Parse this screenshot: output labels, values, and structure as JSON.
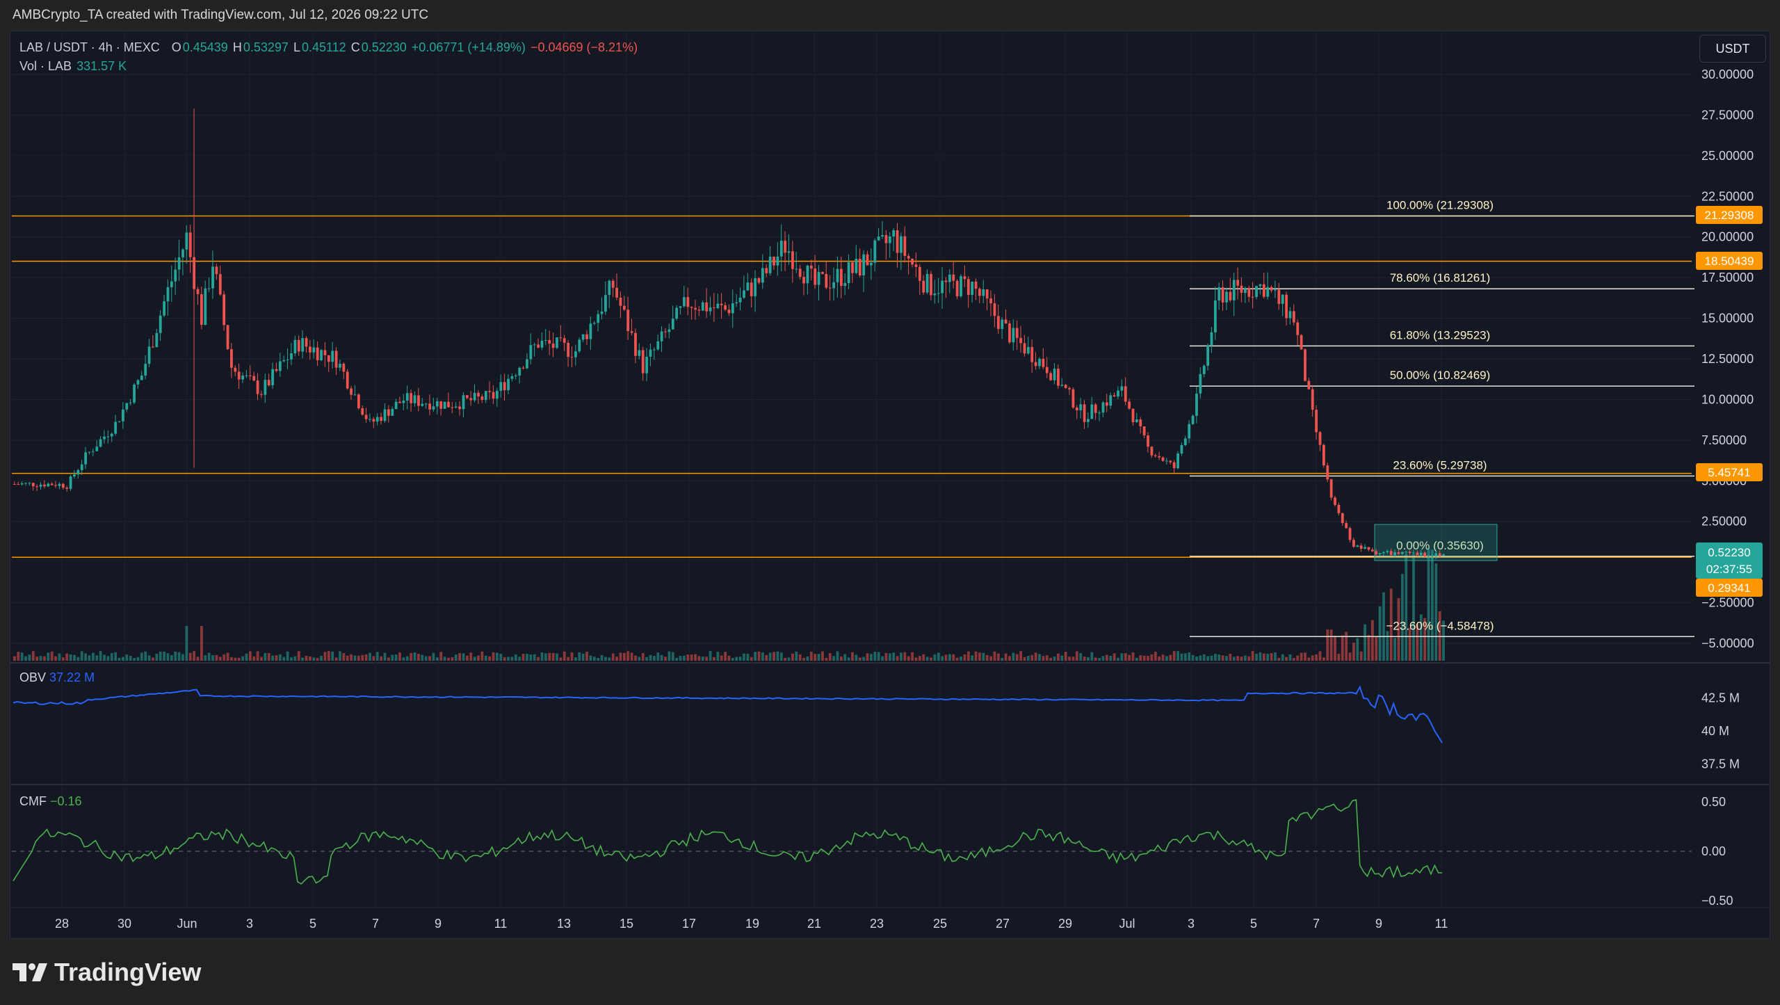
{
  "header": {
    "caption": "AMBCrypto_TA created with TradingView.com, Jul 12, 2026 09:22 UTC"
  },
  "legend": {
    "symbol": "LAB / USDT · 4h · MEXC",
    "o_label": "O",
    "o_value": "0.45439",
    "h_label": "H",
    "h_value": "0.53297",
    "l_label": "L",
    "l_value": "0.45112",
    "c_label": "C",
    "c_value": "0.52230",
    "change_abs": "+0.06771 (+14.89%)",
    "change_2": "−0.04669 (−8.21%)",
    "vol_label": "Vol · LAB",
    "vol_value": "331.57 K"
  },
  "currency_button": "USDT",
  "footer": {
    "brand": "TradingView"
  },
  "colors": {
    "up": "#26a69a",
    "down": "#ef5350",
    "resistance_line": "#ff9800",
    "fib_line": "#e8e6d9",
    "obv_line": "#2962ff",
    "cmf_line": "#4caf50",
    "price_tag": "#26a69a",
    "level_tag": "#ff9800",
    "background": "#141823"
  },
  "price_axis": {
    "labels": [
      "30.00000",
      "27.50000",
      "25.00000",
      "22.50000",
      "20.00000",
      "17.50000",
      "15.00000",
      "12.50000",
      "10.00000",
      "7.50000",
      "5.00000",
      "2.50000",
      "−2.50000",
      "−5.00000"
    ]
  },
  "time_axis": {
    "labels": [
      "28",
      "30",
      "Jun",
      "3",
      "5",
      "7",
      "9",
      "11",
      "13",
      "15",
      "17",
      "19",
      "21",
      "23",
      "25",
      "27",
      "29",
      "Jul",
      "3",
      "5",
      "7",
      "9",
      "11"
    ]
  },
  "level_tags": {
    "r1": "21.29308",
    "r2": "18.50439",
    "r3": "5.45741",
    "current_price": "0.52230",
    "countdown": "02:37:55",
    "low_level": "0.29341"
  },
  "fib_labels": {
    "f100": "100.00% (21.29308)",
    "f786": "78.60% (16.81261)",
    "f618": "61.80% (13.29523)",
    "f500": "50.00% (10.82469)",
    "f236": "23.60% (5.29738)",
    "f000": "0.00% (0.35630)",
    "fm236": "−23.60% (−4.58478)"
  },
  "obv": {
    "label": "OBV",
    "value": "37.22 M",
    "axis_labels": [
      "42.5 M",
      "40 M",
      "37.5 M"
    ]
  },
  "cmf": {
    "label": "CMF",
    "value": "−0.16",
    "axis_labels": [
      "0.50",
      "0.00",
      "−0.50"
    ]
  },
  "chart_data": {
    "type": "candlestick",
    "symbol": "LAB / USDT",
    "interval": "4h",
    "exchange": "MEXC",
    "ylim": [
      -6,
      31
    ],
    "fib_levels": [
      {
        "ratio": "100.00%",
        "price": 21.29308
      },
      {
        "ratio": "78.60%",
        "price": 16.81261
      },
      {
        "ratio": "61.80%",
        "price": 13.29523
      },
      {
        "ratio": "50.00%",
        "price": 10.82469
      },
      {
        "ratio": "23.60%",
        "price": 5.29738
      },
      {
        "ratio": "0.00%",
        "price": 0.3563
      },
      {
        "ratio": "-23.60%",
        "price": -4.58478
      }
    ],
    "horizontal_levels": [
      21.29308,
      18.50439,
      5.45741,
      0.29341
    ],
    "last_price": 0.5223,
    "approx_close_path": [
      {
        "x": 0,
        "y": 4.8
      },
      {
        "x": 11,
        "y": 4.8
      },
      {
        "x": 14,
        "y": 4.7
      },
      {
        "x": 19,
        "y": 6.5
      },
      {
        "x": 27,
        "y": 8.5
      },
      {
        "x": 34,
        "y": 11.5
      },
      {
        "x": 40,
        "y": 16
      },
      {
        "x": 46,
        "y": 20
      },
      {
        "x": 50,
        "y": 15
      },
      {
        "x": 53,
        "y": 18.5
      },
      {
        "x": 58,
        "y": 12
      },
      {
        "x": 66,
        "y": 10.5
      },
      {
        "x": 76,
        "y": 13.5
      },
      {
        "x": 86,
        "y": 12.5
      },
      {
        "x": 95,
        "y": 8.5
      },
      {
        "x": 104,
        "y": 10
      },
      {
        "x": 116,
        "y": 9.7
      },
      {
        "x": 128,
        "y": 10.2
      },
      {
        "x": 140,
        "y": 13.5
      },
      {
        "x": 150,
        "y": 13
      },
      {
        "x": 160,
        "y": 17
      },
      {
        "x": 168,
        "y": 12
      },
      {
        "x": 180,
        "y": 16
      },
      {
        "x": 190,
        "y": 15.5
      },
      {
        "x": 200,
        "y": 17.5
      },
      {
        "x": 206,
        "y": 19.5
      },
      {
        "x": 214,
        "y": 17
      },
      {
        "x": 225,
        "y": 18
      },
      {
        "x": 235,
        "y": 20
      },
      {
        "x": 244,
        "y": 17
      },
      {
        "x": 256,
        "y": 17
      },
      {
        "x": 266,
        "y": 14
      },
      {
        "x": 276,
        "y": 12
      },
      {
        "x": 286,
        "y": 9
      },
      {
        "x": 296,
        "y": 10.5
      },
      {
        "x": 303,
        "y": 7
      },
      {
        "x": 310,
        "y": 5.8
      },
      {
        "x": 316,
        "y": 10
      },
      {
        "x": 322,
        "y": 16.5
      },
      {
        "x": 334,
        "y": 17
      },
      {
        "x": 342,
        "y": 15
      },
      {
        "x": 347,
        "y": 9
      },
      {
        "x": 352,
        "y": 4
      },
      {
        "x": 358,
        "y": 1
      },
      {
        "x": 364,
        "y": 0.6
      },
      {
        "x": 376,
        "y": 0.45
      },
      {
        "x": 382,
        "y": 0.52
      }
    ]
  }
}
